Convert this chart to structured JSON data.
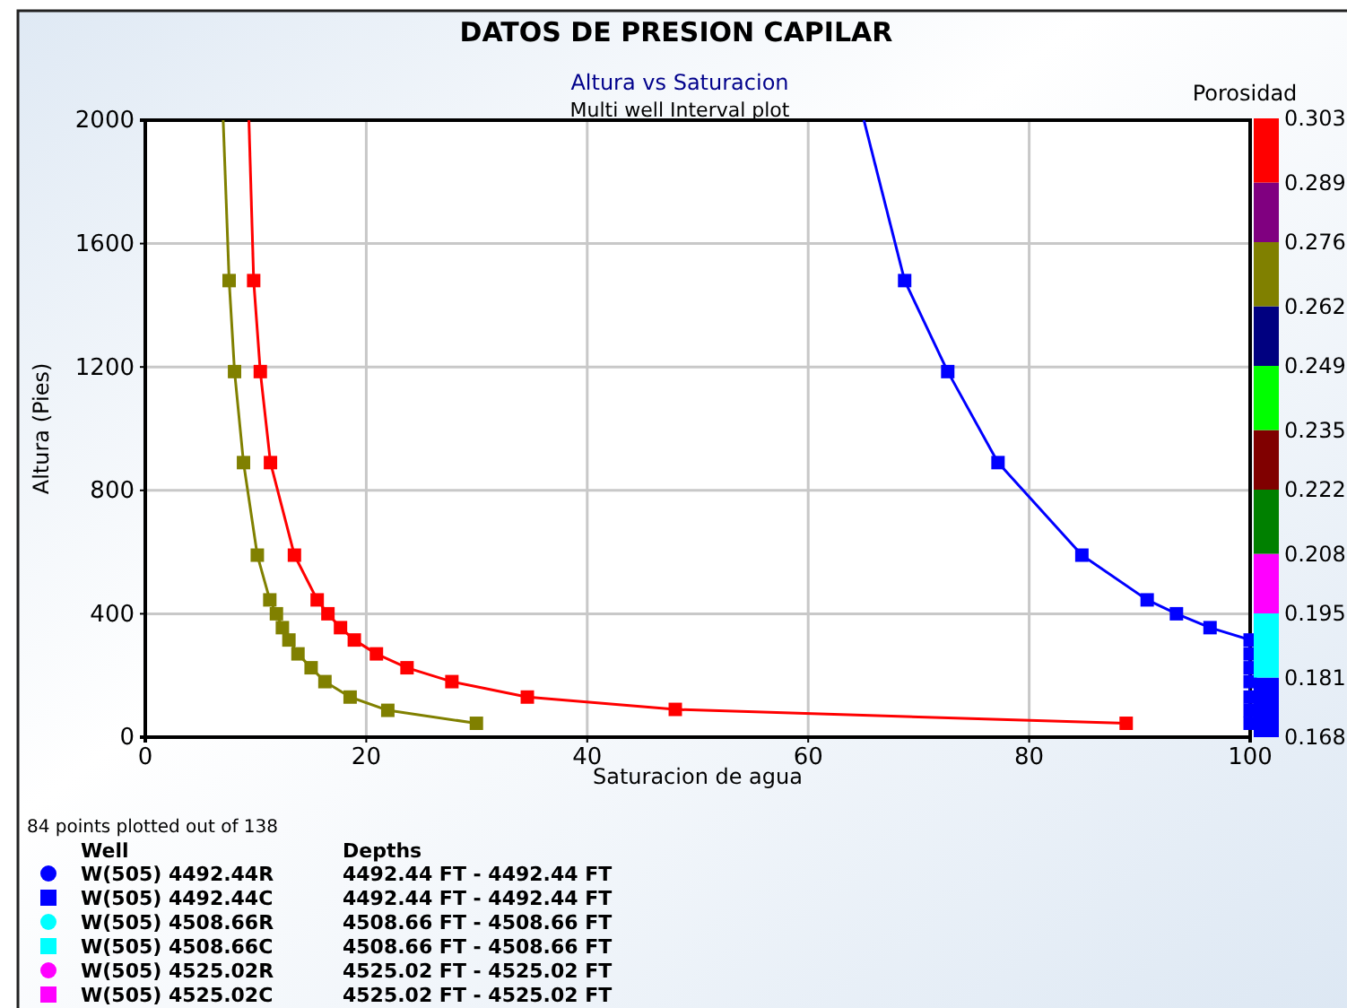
{
  "chart_data": {
    "type": "line",
    "title": "DATOS DE PRESION CAPILAR",
    "subtitle": "Altura vs Saturacion",
    "xlabel": "Saturacion de agua",
    "ylabel": "Altura (Pies)",
    "clabel": "Porosidad",
    "xlim": [
      0,
      100
    ],
    "xticks": [
      0,
      20,
      40,
      60,
      80,
      100
    ],
    "ylim": [
      0,
      2000
    ],
    "yticks": [
      0,
      400,
      800,
      1200,
      1600,
      2000
    ],
    "clim": [
      0.168,
      0.303
    ],
    "cticks": [
      0.168,
      0.181,
      0.195,
      0.208,
      0.222,
      0.235,
      0.249,
      0.262,
      0.276,
      0.289,
      0.303
    ],
    "grid": true,
    "marker": "square",
    "line_style": "solid",
    "series": [
      {
        "color": "#808000",
        "x": [
          7.59,
          8.08,
          8.89,
          10.14,
          11.27,
          11.87,
          12.41,
          13.0,
          13.82,
          15.01,
          16.26,
          18.54,
          21.95,
          29.97
        ],
        "values": [
          1480,
          1185,
          890,
          590,
          445,
          400,
          355,
          315,
          270,
          225,
          180,
          130,
          87,
          45
        ]
      },
      {
        "color": "#808000",
        "marker": "none",
        "x": [
          7.05,
          7.59
        ],
        "values": [
          2000,
          1480
        ]
      },
      {
        "color": "#ff0000",
        "x": [
          9.81,
          10.41,
          11.33,
          13.5,
          15.56,
          16.53,
          17.67,
          18.92,
          20.92,
          23.69,
          27.75,
          34.58,
          47.97,
          88.78
        ],
        "values": [
          1480,
          1185,
          890,
          590,
          445,
          400,
          355,
          315,
          270,
          225,
          180,
          130,
          90,
          45
        ]
      },
      {
        "color": "#ff0000",
        "marker": "none",
        "x": [
          9.38,
          9.81
        ],
        "values": [
          2000,
          1480
        ]
      },
      {
        "color": "#0000ff",
        "x": [
          68.73,
          72.63,
          77.18,
          84.77,
          90.68,
          93.33,
          96.37,
          100,
          100,
          100,
          100,
          100,
          100,
          100
        ],
        "values": [
          1480,
          1185,
          890,
          590,
          445,
          400,
          355,
          315,
          270,
          225,
          180,
          130,
          87,
          45
        ]
      },
      {
        "color": "#0000ff",
        "marker": "none",
        "x": [
          65.04,
          68.73
        ],
        "values": [
          2000,
          1480
        ]
      }
    ],
    "annotations": [
      "Multi well Interval plot",
      "84 points plotted out of 138",
      "Well",
      "Depths",
      "W(505)  4492.44R",
      "4492.44 FT - 4492.44 FT",
      "W(505)  4492.44C",
      "4492.44 FT - 4492.44 FT",
      "W(505)  4508.66R",
      "4508.66 FT - 4508.66 FT",
      "W(505)  4508.66C",
      "4508.66 FT - 4508.66 FT",
      "W(505)  4525.02R",
      "4525.02 FT - 4525.02 FT",
      "W(505)  4525.02C",
      "4525.02 FT - 4525.02 FT"
    ]
  }
}
